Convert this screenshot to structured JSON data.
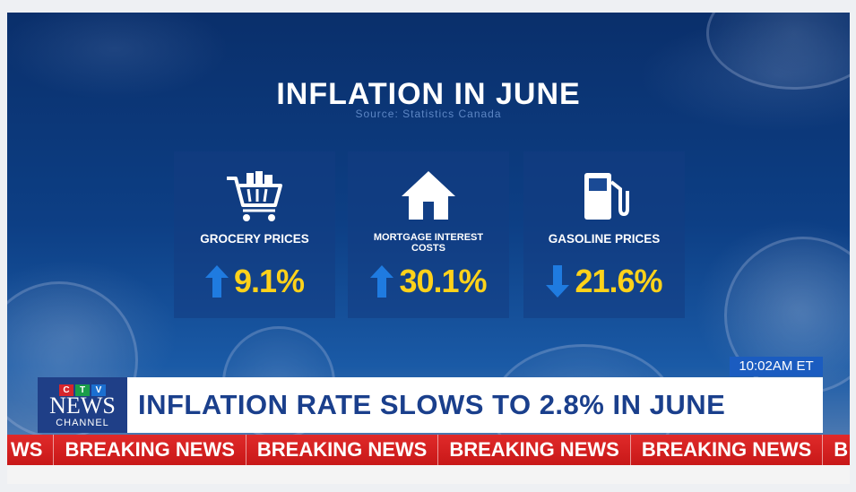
{
  "title": "INFLATION IN JUNE",
  "source": "Source: Statistics Canada",
  "stats": [
    {
      "label": "GROCERY PRICES",
      "value": "9.1%",
      "direction": "up",
      "icon": "shopping-cart-icon"
    },
    {
      "label": "MORTGAGE INTEREST",
      "label2": "COSTS",
      "value": "30.1%",
      "direction": "up",
      "icon": "house-icon"
    },
    {
      "label": "GASOLINE PRICES",
      "value": "21.6%",
      "direction": "down",
      "icon": "gas-pump-icon"
    }
  ],
  "time": "10:02AM ET",
  "logo": {
    "ctv": [
      "C",
      "T",
      "V"
    ],
    "news": "NEWS",
    "channel": "CHANNEL"
  },
  "headline": "INFLATION RATE SLOWS TO 2.8% IN JUNE",
  "ticker": [
    "WS",
    "BREAKING NEWS",
    "BREAKING NEWS",
    "BREAKING NEWS",
    "BREAKING NEWS",
    "B"
  ],
  "colors": {
    "accent_yellow": "#ffd21a",
    "arrow_blue": "#1f7be0",
    "ticker_red": "#d42020",
    "headline_blue": "#1a3f8c"
  }
}
